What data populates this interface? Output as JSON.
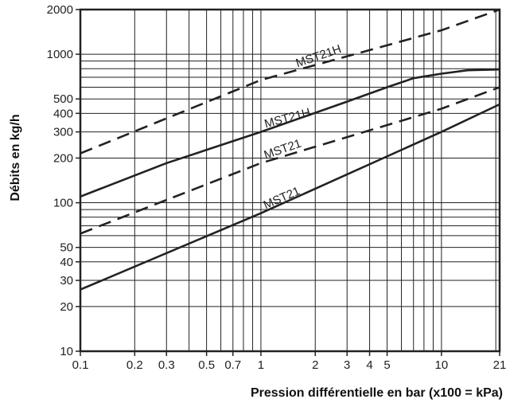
{
  "chart_data": {
    "type": "line",
    "xscale": "log",
    "yscale": "log",
    "xlim": [
      0.1,
      21
    ],
    "ylim": [
      10,
      2000
    ],
    "xlabel": "Pression différentielle en bar (x100 = kPa)",
    "ylabel": "Débits en kg/h",
    "grid": true,
    "x_tick_labels": [
      "0.1",
      "0.2",
      "0.3",
      "0.5",
      "0.7",
      "1",
      "2",
      "3",
      "4",
      "5",
      "10",
      "21"
    ],
    "x_tick_values": [
      0.1,
      0.2,
      0.3,
      0.5,
      0.7,
      1,
      2,
      3,
      4,
      5,
      10,
      21
    ],
    "y_tick_labels": [
      "10",
      "20",
      "30",
      "40",
      "50",
      "100",
      "200",
      "300",
      "400",
      "500",
      "1000",
      "2000"
    ],
    "y_tick_values": [
      10,
      20,
      30,
      40,
      50,
      100,
      200,
      300,
      400,
      500,
      1000,
      2000
    ],
    "series": [
      {
        "name": "MST21H",
        "style": "dashed",
        "x": [
          0.1,
          1,
          10,
          21
        ],
        "y": [
          215,
          670,
          1450,
          2000
        ]
      },
      {
        "name": "MST21H",
        "style": "solid",
        "x": [
          0.1,
          0.3,
          1,
          3,
          5,
          7,
          10,
          14,
          21
        ],
        "y": [
          110,
          185,
          300,
          480,
          600,
          690,
          740,
          780,
          790
        ]
      },
      {
        "name": "MST21",
        "style": "dashed",
        "x": [
          0.1,
          1,
          10,
          21
        ],
        "y": [
          62,
          185,
          430,
          600
        ]
      },
      {
        "name": "MST21",
        "style": "solid",
        "x": [
          0.1,
          1,
          10,
          21
        ],
        "y": [
          26,
          85,
          300,
          460
        ]
      }
    ]
  },
  "colors": {
    "line": "#222222",
    "grid": "#222222",
    "background": "#ffffff"
  }
}
